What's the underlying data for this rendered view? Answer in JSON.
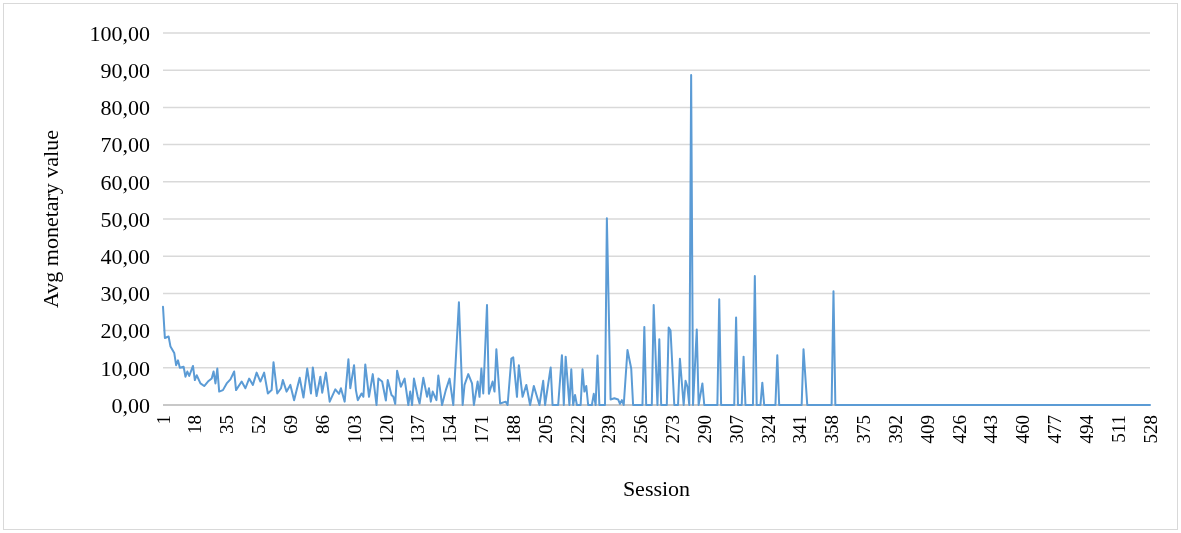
{
  "chart_data": {
    "type": "line",
    "xlabel": "Session",
    "ylabel": "Avg monetary value",
    "xlim": [
      1,
      528
    ],
    "ylim": [
      0,
      100
    ],
    "xticks": [
      1,
      18,
      35,
      52,
      69,
      86,
      103,
      120,
      137,
      154,
      171,
      188,
      205,
      222,
      239,
      256,
      273,
      290,
      307,
      324,
      341,
      358,
      375,
      392,
      409,
      426,
      443,
      460,
      477,
      494,
      511,
      528
    ],
    "yticks": [
      {
        "value": 0,
        "label": "0,00"
      },
      {
        "value": 10,
        "label": "10,00"
      },
      {
        "value": 20,
        "label": "20,00"
      },
      {
        "value": 30,
        "label": "30,00"
      },
      {
        "value": 40,
        "label": "40,00"
      },
      {
        "value": 50,
        "label": "50,00"
      },
      {
        "value": 60,
        "label": "60,00"
      },
      {
        "value": 70,
        "label": "70,00"
      },
      {
        "value": 80,
        "label": "80,00"
      },
      {
        "value": 90,
        "label": "90,00"
      },
      {
        "value": 100,
        "label": "100,00"
      }
    ],
    "grid": "y",
    "marker": "none",
    "line_style": "solid",
    "series": [
      {
        "color": "#5b9bd5",
        "x": [
          1,
          2,
          4,
          5,
          7,
          8,
          9,
          10,
          12,
          13,
          14,
          15,
          17,
          18,
          19,
          21,
          23,
          25,
          27,
          28,
          29,
          30,
          31,
          33,
          35,
          37,
          39,
          40,
          43,
          45,
          47,
          49,
          51,
          53,
          55,
          57,
          59,
          60,
          62,
          64,
          65,
          67,
          69,
          71,
          74,
          76,
          78,
          80,
          81,
          83,
          85,
          86,
          88,
          90,
          93,
          95,
          96,
          98,
          100,
          101,
          103,
          104,
          105,
          107,
          108,
          109,
          111,
          113,
          115,
          116,
          118,
          120,
          121,
          123,
          124,
          125,
          126,
          128,
          130,
          132,
          133,
          134,
          135,
          137,
          138,
          140,
          142,
          143,
          144,
          145,
          147,
          148,
          150,
          152,
          154,
          156,
          159,
          161,
          162,
          164,
          166,
          167,
          169,
          170,
          171,
          172,
          174,
          175,
          177,
          178,
          179,
          181,
          184,
          185,
          187,
          188,
          190,
          191,
          193,
          195,
          197,
          199,
          202,
          204,
          205,
          208,
          209,
          212,
          214,
          215,
          216,
          218,
          219,
          220,
          221,
          222,
          224,
          225,
          226,
          227,
          228,
          230,
          231,
          232,
          233,
          234,
          237,
          238,
          240,
          242,
          244,
          245,
          246,
          247,
          249,
          251,
          252,
          257,
          258,
          259,
          262,
          263,
          265,
          266,
          267,
          270,
          271,
          272,
          274,
          276,
          277,
          279,
          280,
          281,
          282,
          283,
          284,
          286,
          287,
          289,
          290,
          297,
          298,
          299,
          306,
          307,
          308,
          310,
          311,
          312,
          316,
          317,
          318,
          320,
          321,
          322,
          328,
          329,
          330,
          342,
          343,
          345,
          358,
          359,
          360,
          528
        ],
        "values": [
          26.4,
          18,
          18.4,
          15.7,
          14,
          10.7,
          12,
          10,
          10.3,
          7.6,
          9,
          7.8,
          10.5,
          6.7,
          8,
          5.8,
          5.1,
          6.3,
          7.1,
          9,
          5.8,
          9.8,
          3.6,
          4,
          5.8,
          6.9,
          9,
          4,
          6.3,
          4.5,
          7.1,
          5.4,
          8.7,
          6.3,
          8.7,
          3.1,
          4,
          11.5,
          3.1,
          4.5,
          6.7,
          3.6,
          5.4,
          1.3,
          7.3,
          2,
          9.8,
          3.1,
          10.1,
          2.4,
          7.6,
          3.3,
          8.7,
          0.9,
          4.2,
          3,
          4.5,
          0.9,
          12.3,
          4.5,
          10.7,
          4,
          1.3,
          3.1,
          2.2,
          10.9,
          2.2,
          8.3,
          0,
          7.1,
          6.3,
          1.2,
          6.7,
          2.7,
          2.2,
          0.3,
          9.2,
          4.9,
          7.1,
          0,
          3.6,
          0,
          7.1,
          2.2,
          0.4,
          7.3,
          2.2,
          4.5,
          0.9,
          3.6,
          1.3,
          7.9,
          0,
          4,
          7.1,
          0,
          27.6,
          0,
          5.4,
          8.3,
          5.8,
          0,
          6.3,
          2.2,
          9.8,
          3.1,
          26.9,
          3,
          6.3,
          3.6,
          15,
          0.4,
          0.9,
          0,
          12.5,
          12.8,
          2.2,
          10.7,
          2.2,
          5.4,
          0,
          5.1,
          0,
          6.5,
          0,
          10.1,
          0,
          0,
          13.4,
          0,
          13,
          0,
          9.6,
          0,
          2.7,
          0,
          0,
          9.6,
          3.6,
          5.1,
          0,
          0,
          3,
          0,
          13.3,
          0,
          0,
          50.2,
          1.5,
          1.8,
          1.5,
          0.3,
          1.3,
          0,
          14.8,
          9.8,
          0,
          0,
          21,
          0,
          0,
          26.9,
          0,
          17.7,
          0,
          0,
          20.8,
          20,
          0,
          0,
          12.4,
          0,
          6.5,
          4.9,
          0,
          88.7,
          0,
          20.3,
          0,
          5.8,
          0,
          0,
          28.4,
          0,
          0,
          23.5,
          0,
          0,
          13,
          0,
          0,
          34.7,
          0,
          0,
          6,
          0,
          0,
          13.4,
          0,
          0,
          15,
          0,
          0,
          30.6,
          0,
          0
        ]
      }
    ]
  }
}
